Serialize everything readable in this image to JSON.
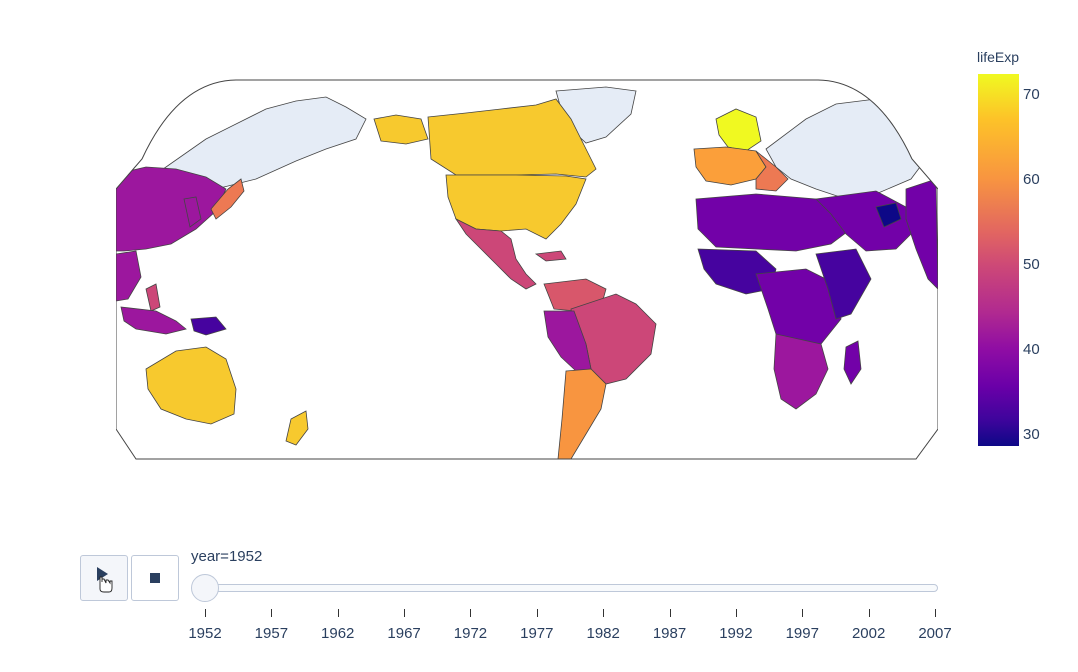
{
  "map": {
    "colorbar_title": "lifeExp",
    "colorbar_ticks": [
      "70",
      "60",
      "50",
      "40",
      "30"
    ],
    "colorscale": [
      "#0d0887",
      "#46039f",
      "#7201a8",
      "#9c179e",
      "#bd3786",
      "#d8576b",
      "#ed7953",
      "#fb9f3a",
      "#fdca26",
      "#f0f921"
    ],
    "no_data_color": "#e5ecf6",
    "border_color": "#444444"
  },
  "slider": {
    "label": "year=1952",
    "current_value": "1952",
    "ticks": [
      "1952",
      "1957",
      "1962",
      "1967",
      "1972",
      "1977",
      "1982",
      "1987",
      "1992",
      "1997",
      "2002",
      "2007"
    ]
  },
  "controls": {
    "play_icon": "play-icon",
    "stop_icon": "stop-icon"
  }
}
